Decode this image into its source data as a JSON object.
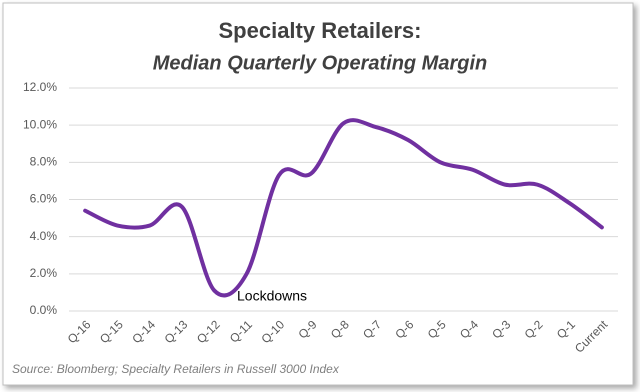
{
  "chart_data": {
    "type": "line",
    "title": "Specialty Retailers:",
    "subtitle": "Median Quarterly Operating Margin",
    "categories": [
      "Q-16",
      "Q-15",
      "Q-14",
      "Q-13",
      "Q-12",
      "Q-11",
      "Q-10",
      "Q-9",
      "Q-8",
      "Q-7",
      "Q-6",
      "Q-5",
      "Q-4",
      "Q-3",
      "Q-2",
      "Q-1",
      "Current"
    ],
    "series": [
      {
        "name": "Median Quarterly Operating Margin",
        "color": "#7030a0",
        "values": [
          5.4,
          4.6,
          4.6,
          5.6,
          1.1,
          2.0,
          7.3,
          7.4,
          10.1,
          9.9,
          9.2,
          8.0,
          7.6,
          6.8,
          6.8,
          5.8,
          4.5
        ]
      }
    ],
    "ylim": [
      0,
      12
    ],
    "yticks": [
      {
        "value": 0,
        "label": "0.0%"
      },
      {
        "value": 2,
        "label": "2.0%"
      },
      {
        "value": 4,
        "label": "4.0%"
      },
      {
        "value": 6,
        "label": "6.0%"
      },
      {
        "value": 8,
        "label": "8.0%"
      },
      {
        "value": 10,
        "label": "10.0%"
      },
      {
        "value": 12,
        "label": "12.0%"
      }
    ],
    "grid": true,
    "annotation": "Lockdowns",
    "source": "Source: Bloomberg; Specialty Retailers in Russell 3000 Index"
  }
}
